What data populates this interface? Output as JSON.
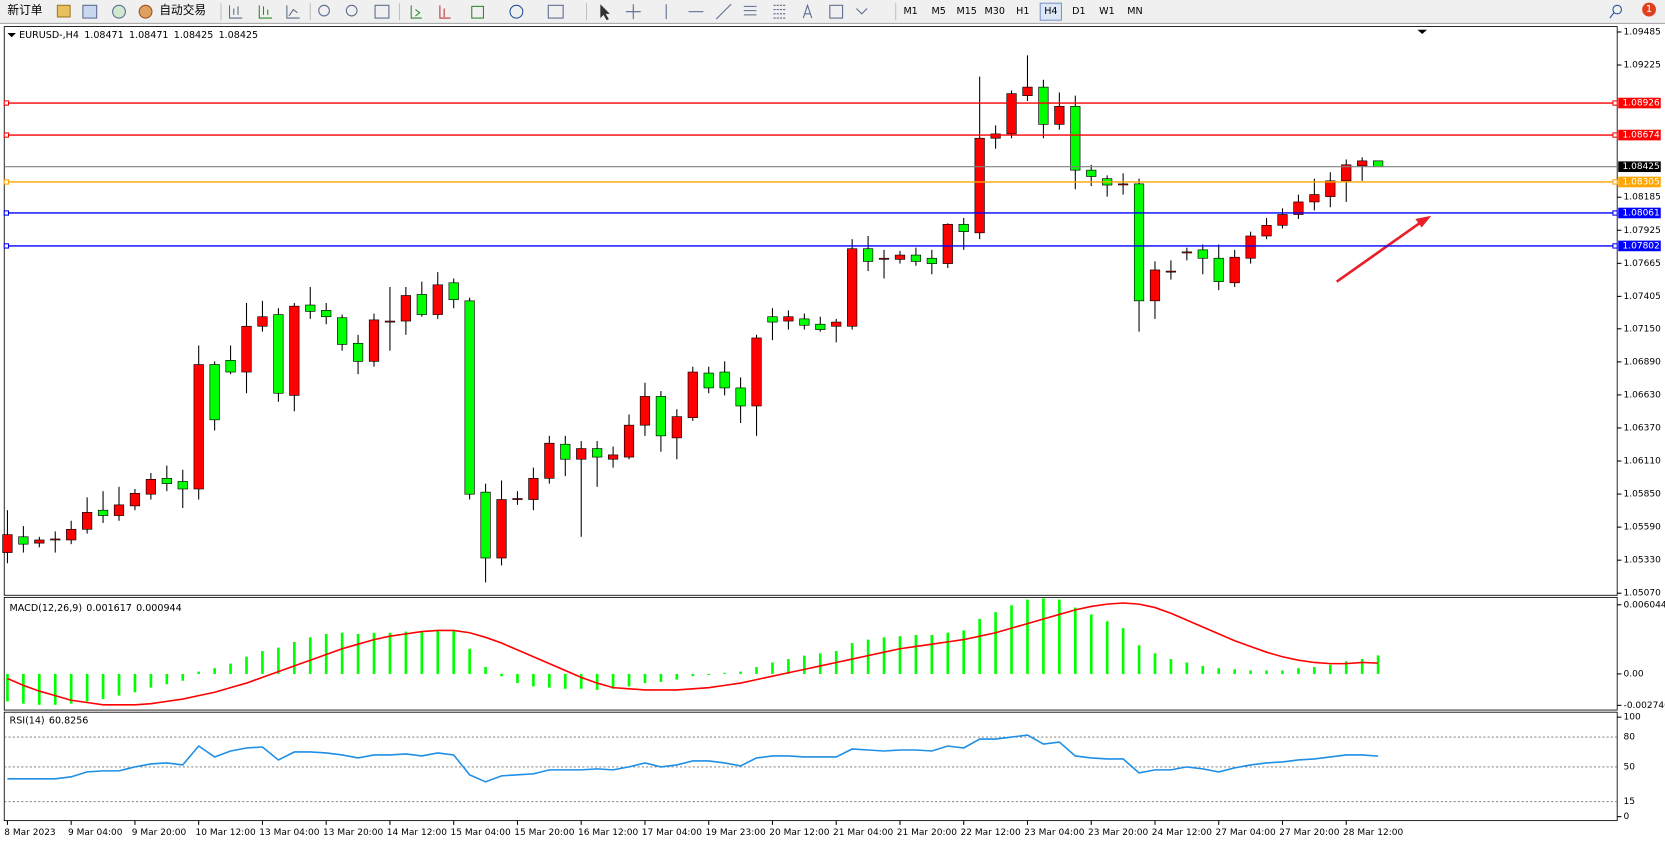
{
  "toolbar": {
    "new_order": "新订单",
    "auto_trading": "自动交易",
    "timeframes": [
      "M1",
      "M5",
      "M15",
      "M30",
      "H1",
      "H4",
      "D1",
      "W1",
      "MN"
    ],
    "active_timeframe": "H4",
    "notification_count": 1
  },
  "chart_data": [
    {
      "type": "candlestick",
      "symbol_label": "EURUSD-,H4",
      "categories": [
        "8 Mar 2023",
        null,
        null,
        null,
        "9 Mar 04:00",
        null,
        null,
        null,
        "9 Mar 20:00",
        null,
        null,
        null,
        "10 Mar 12:00",
        null,
        null,
        null,
        "13 Mar 04:00",
        null,
        null,
        null,
        "13 Mar 20:00",
        null,
        null,
        null,
        "14 Mar 12:00",
        null,
        null,
        null,
        "15 Mar 04:00",
        null,
        null,
        null,
        "15 Mar 20:00",
        null,
        null,
        null,
        "16 Mar 12:00",
        null,
        null,
        null,
        "17 Mar 04:00",
        null,
        null,
        null,
        "19 Mar 23:00",
        null,
        null,
        null,
        "20 Mar 12:00",
        null,
        null,
        null,
        "21 Mar 04:00",
        null,
        null,
        null,
        "21 Mar 20:00",
        null,
        null,
        null,
        "22 Mar 12:00",
        null,
        null,
        null,
        "23 Mar 04:00",
        null,
        null,
        null,
        "23 Mar 20:00",
        null,
        null,
        null,
        "24 Mar 12:00",
        null,
        null,
        null,
        "27 Mar 04:00",
        null,
        null,
        null,
        "27 Mar 20:00",
        null,
        null,
        null,
        "28 Mar 12:00",
        null,
        null
      ],
      "open": [
        1.0539,
        1.05514,
        1.05464,
        1.05497,
        1.05489,
        1.05573,
        1.05723,
        1.05681,
        1.05757,
        1.05849,
        1.05974,
        1.05949,
        1.0589,
        1.06869,
        1.06902,
        1.0681,
        1.0717,
        1.07262,
        1.06626,
        1.07337,
        1.07295,
        1.07237,
        1.07036,
        1.06894,
        1.07211,
        1.07211,
        1.0742,
        1.07262,
        1.07512,
        1.0737,
        1.05865,
        1.05347,
        1.05815,
        1.05807,
        1.05974,
        1.06242,
        1.06124,
        1.06208,
        1.06124,
        1.06141,
        1.06392,
        1.06618,
        1.06292,
        1.06451,
        1.06802,
        1.0681,
        1.06685,
        1.06543,
        1.07245,
        1.07211,
        1.07228,
        1.07186,
        1.0717,
        1.0717,
        1.0778,
        1.07705,
        1.07696,
        1.0773,
        1.07705,
        1.07663,
        1.07972,
        1.07905,
        1.08649,
        1.08683,
        1.08984,
        1.09051,
        1.08758,
        1.089,
        1.08398,
        1.08331,
        1.0829,
        1.0829,
        1.0737,
        1.07604,
        1.07755,
        1.07771,
        1.07705,
        1.07512,
        1.07705,
        1.0788,
        1.07964,
        1.08049,
        1.08148,
        1.0819,
        1.08314,
        1.08432,
        1.08471
      ],
      "high": [
        1.05723,
        1.05598,
        1.05514,
        1.05556,
        1.0564,
        1.05824,
        1.05873,
        1.05907,
        1.0589,
        1.06016,
        1.06074,
        1.06041,
        1.07019,
        1.06894,
        1.07019,
        1.07353,
        1.0737,
        1.07312,
        1.07353,
        1.07479,
        1.07353,
        1.07262,
        1.07103,
        1.0727,
        1.07479,
        1.07479,
        1.07521,
        1.07596,
        1.07546,
        1.07395,
        1.05932,
        1.05957,
        1.05873,
        1.06058,
        1.06308,
        1.06308,
        1.06267,
        1.06267,
        1.06224,
        1.06476,
        1.06726,
        1.0666,
        1.06517,
        1.06852,
        1.06852,
        1.06894,
        1.06768,
        1.07103,
        1.07312,
        1.07295,
        1.0727,
        1.07245,
        1.07228,
        1.07855,
        1.0788,
        1.07771,
        1.07763,
        1.07788,
        1.07771,
        1.0798,
        1.08022,
        1.09134,
        1.0875,
        1.09025,
        1.09301,
        1.09109,
        1.09009,
        1.08984,
        1.0844,
        1.08357,
        1.08373,
        1.08331,
        1.0768,
        1.07688,
        1.07788,
        1.07813,
        1.07813,
        1.07771,
        1.07914,
        1.08022,
        1.08098,
        1.08206,
        1.08331,
        1.08382,
        1.08482,
        1.08499,
        1.08471
      ],
      "low": [
        1.05306,
        1.0539,
        1.05431,
        1.0539,
        1.05456,
        1.05539,
        1.05623,
        1.0564,
        1.05723,
        1.05807,
        1.05873,
        1.0574,
        1.05807,
        1.0635,
        1.06793,
        1.06643,
        1.07128,
        1.06576,
        1.06501,
        1.07228,
        1.07186,
        1.06978,
        1.06793,
        1.06852,
        1.06978,
        1.07103,
        1.07245,
        1.07228,
        1.07312,
        1.05807,
        1.05155,
        1.05289,
        1.05765,
        1.05723,
        1.05932,
        1.05991,
        1.05514,
        1.05907,
        1.06058,
        1.06124,
        1.06308,
        1.06183,
        1.06124,
        1.06426,
        1.06643,
        1.06626,
        1.06409,
        1.06308,
        1.07061,
        1.07144,
        1.07144,
        1.07128,
        1.07044,
        1.07144,
        1.07604,
        1.07546,
        1.07663,
        1.07646,
        1.07579,
        1.07629,
        1.07771,
        1.07855,
        1.08566,
        1.08649,
        1.08942,
        1.08649,
        1.08716,
        1.08248,
        1.08273,
        1.0819,
        1.08206,
        1.07128,
        1.07228,
        1.07537,
        1.07688,
        1.07579,
        1.07454,
        1.07479,
        1.07663,
        1.07855,
        1.07939,
        1.08014,
        1.08081,
        1.08106,
        1.08148,
        1.08314,
        1.08425
      ],
      "close": [
        1.05531,
        1.05456,
        1.05489,
        1.05497,
        1.05573,
        1.05706,
        1.05681,
        1.05765,
        1.05856,
        1.05966,
        1.05932,
        1.0589,
        1.06869,
        1.06434,
        1.0681,
        1.0717,
        1.07245,
        1.06643,
        1.07328,
        1.07287,
        1.07245,
        1.07027,
        1.06894,
        1.0722,
        1.07211,
        1.07412,
        1.07262,
        1.07496,
        1.07379,
        1.05849,
        1.05347,
        1.05807,
        1.05815,
        1.05974,
        1.0625,
        1.06124,
        1.06208,
        1.06141,
        1.06158,
        1.06392,
        1.06618,
        1.06308,
        1.06459,
        1.0681,
        1.06685,
        1.06685,
        1.06543,
        1.07078,
        1.07203,
        1.07245,
        1.07178,
        1.07144,
        1.07203,
        1.0778,
        1.0768,
        1.07705,
        1.0773,
        1.0768,
        1.07663,
        1.07972,
        1.07914,
        1.08649,
        1.08683,
        1.09,
        1.09051,
        1.08758,
        1.089,
        1.08398,
        1.08348,
        1.08281,
        1.0829,
        1.0737,
        1.07613,
        1.07604,
        1.07755,
        1.07705,
        1.07521,
        1.07713,
        1.0788,
        1.07964,
        1.08049,
        1.08148,
        1.08206,
        1.08314,
        1.0844,
        1.08471,
        1.08425
      ],
      "up_color": "#ff0000",
      "down_color": "#00ff00",
      "price_line_color": "#000000",
      "ylim": [
        1.05054,
        1.09519
      ],
      "yticks": [
        1.09485,
        1.09225,
        1.08185,
        1.07925,
        1.07665,
        1.07405,
        {
          "value": 1.0715,
          "label": "1.07150"
        },
        {
          "value": 1.0689,
          "label": "1.06890"
        },
        {
          "value": 1.0663,
          "label": "1.06630"
        },
        {
          "value": 1.0637,
          "label": "1.06370"
        },
        {
          "value": 1.0611,
          "label": "1.06110"
        },
        {
          "value": 1.0585,
          "label": "1.05850"
        },
        {
          "value": 1.0559,
          "label": "1.05590"
        },
        {
          "value": 1.0533,
          "label": "1.05330"
        },
        {
          "value": 1.0507,
          "label": "1.05070"
        }
      ],
      "hlines": [
        {
          "value": 1.08926,
          "color": "#ff0000"
        },
        {
          "value": 1.08674,
          "color": "#ff0000"
        },
        {
          "value": 1.08305,
          "color": "#ffa500"
        },
        {
          "value": 1.08061,
          "color": "#0000ff"
        },
        {
          "value": 1.07802,
          "color": "#0000ff"
        }
      ]
    },
    {
      "type": "macd",
      "label": "MACD(12,26,9)",
      "histogram": [
        -0.0024,
        -0.0026,
        -0.0027,
        -0.0027,
        -0.0026,
        -0.0024,
        -0.0022,
        -0.0019,
        -0.0016,
        -0.0012,
        -0.0009,
        -0.0006,
        0.0002,
        0.0005,
        0.0009,
        0.0015,
        0.002,
        0.0023,
        0.0028,
        0.0032,
        0.0035,
        0.0036,
        0.0035,
        0.0036,
        0.0036,
        0.0037,
        0.0037,
        0.0038,
        0.0038,
        0.0022,
        0.0006,
        -0.0002,
        -0.0008,
        -0.0011,
        -0.0012,
        -0.0013,
        -0.0013,
        -0.0014,
        -0.0013,
        -0.0011,
        -0.0008,
        -0.0007,
        -0.0005,
        -0.0002,
        -0.0001,
        0.0001,
        0.0002,
        0.0006,
        0.001,
        0.0013,
        0.0016,
        0.0018,
        0.002,
        0.0027,
        0.003,
        0.0032,
        0.0033,
        0.0034,
        0.0034,
        0.0036,
        0.0038,
        0.0048,
        0.0054,
        0.006,
        0.0065,
        0.0066,
        0.0065,
        0.0058,
        0.0052,
        0.0046,
        0.004,
        0.0025,
        0.0018,
        0.0013,
        0.001,
        0.0007,
        0.0005,
        0.0004,
        0.0003,
        0.0003,
        0.0003,
        0.0005,
        0.0006,
        0.0008,
        0.0011,
        0.0013,
        0.001617
      ],
      "signal": [
        -0.0004,
        -0.001,
        -0.0015,
        -0.0019,
        -0.0023,
        -0.0025,
        -0.0027,
        -0.0027,
        -0.0027,
        -0.0026,
        -0.0024,
        -0.0022,
        -0.0019,
        -0.0016,
        -0.0012,
        -0.0008,
        -0.0003,
        0.0002,
        0.0007,
        0.0012,
        0.0017,
        0.0022,
        0.0026,
        0.003,
        0.0033,
        0.0035,
        0.0037,
        0.0038,
        0.0038,
        0.0036,
        0.0032,
        0.0027,
        0.0021,
        0.0015,
        0.0009,
        0.0003,
        -0.0003,
        -0.0008,
        -0.0012,
        -0.0013,
        -0.0014,
        -0.0014,
        -0.0014,
        -0.0013,
        -0.0012,
        -0.001,
        -0.0008,
        -0.0005,
        -0.0002,
        0.0001,
        0.0004,
        0.0007,
        0.001,
        0.0013,
        0.0016,
        0.0019,
        0.0022,
        0.0024,
        0.0026,
        0.0028,
        0.003,
        0.0033,
        0.0036,
        0.004,
        0.0044,
        0.0048,
        0.0052,
        0.0056,
        0.0059,
        0.0061,
        0.0062,
        0.0061,
        0.0058,
        0.0053,
        0.0047,
        0.0041,
        0.0035,
        0.0029,
        0.0024,
        0.0019,
        0.0015,
        0.0012,
        0.001,
        0.0009,
        0.0009,
        0.001,
        0.000944
      ],
      "hist_color": "#00ff00",
      "signal_color": "#ff0000",
      "ylim": [
        -0.00316,
        0.00669
      ],
      "yticks": [
        0.006044,
        {
          "value": 0,
          "label": "0.00"
        },
        -0.002746
      ]
    },
    {
      "type": "line",
      "label": "RSI(14)",
      "values": [
        38,
        38,
        38,
        38,
        40,
        45,
        46,
        46,
        50,
        53,
        54,
        52,
        71,
        60,
        66,
        69,
        70,
        57,
        65,
        65,
        64,
        62,
        59,
        62,
        62,
        63,
        61,
        64,
        62,
        42,
        35,
        41,
        42,
        43,
        47,
        47,
        47,
        48,
        47,
        50,
        54,
        50,
        52,
        56,
        56,
        54,
        51,
        59,
        61,
        61,
        60,
        60,
        60,
        68,
        67,
        66,
        67,
        67,
        66,
        71,
        69,
        78,
        78,
        80,
        82,
        73,
        75,
        61,
        59,
        58,
        58,
        44,
        47,
        47,
        50,
        48,
        45,
        49,
        52,
        54,
        55,
        57,
        58,
        60,
        62,
        62,
        60.8256
      ],
      "color": "#1e8fe6",
      "ylim": [
        -4,
        105
      ],
      "yticks": [
        100,
        0
      ],
      "levels": [
        80,
        50,
        15
      ]
    }
  ]
}
